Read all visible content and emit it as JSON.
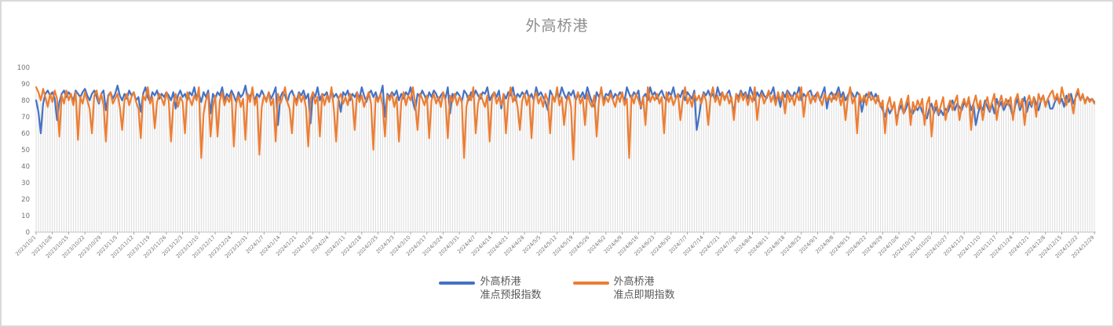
{
  "window": {
    "background": "#ffffff",
    "border_color": "#d9d9d9"
  },
  "title": {
    "text": "外高桥港",
    "color": "#8c8c8c"
  },
  "legend": {
    "items": [
      {
        "name_line1": "外高桥港",
        "name_line2": "准点预报指数",
        "color": "#4472C4"
      },
      {
        "name_line1": "外高桥港",
        "name_line2": "准点即期指数",
        "color": "#ED7D31"
      }
    ]
  },
  "colors": {
    "drop_line": "#dcdcdc",
    "axis_line": "#c0c0c0",
    "tick_mark": "#a6a6a6",
    "axis_label": "#737373"
  },
  "chart_data": {
    "type": "line",
    "title": "外高桥港",
    "xlabel": "",
    "ylabel": "",
    "ylim": [
      0,
      100
    ],
    "y_ticks": [
      0,
      10,
      20,
      30,
      40,
      50,
      60,
      70,
      80,
      90,
      100
    ],
    "grid": "vertical-drop-lines",
    "legend_position": "bottom",
    "x_start_date": "2023/10/1",
    "x_end_date": "2024/12/29",
    "point_interval": "daily",
    "x_tick_interval_days": 7,
    "x_tick_labels": [
      "2023/10/1",
      "2023/10/8",
      "2023/10/15",
      "2023/10/22",
      "2023/10/29",
      "2023/11/5",
      "2023/11/12",
      "2023/11/19",
      "2023/11/26",
      "2023/12/3",
      "2023/12/10",
      "2023/12/17",
      "2023/12/24",
      "2023/12/31",
      "2024/1/7",
      "2024/1/14",
      "2024/1/21",
      "2024/1/28",
      "2024/2/4",
      "2024/2/11",
      "2024/2/18",
      "2024/2/25",
      "2024/3/3",
      "2024/3/10",
      "2024/3/17",
      "2024/3/24",
      "2024/3/31",
      "2024/4/7",
      "2024/4/14",
      "2024/4/21",
      "2024/4/28",
      "2024/5/5",
      "2024/5/12",
      "2024/5/19",
      "2024/5/26",
      "2024/6/2",
      "2024/6/9",
      "2024/6/16",
      "2024/6/23",
      "2024/6/30",
      "2024/7/7",
      "2024/7/14",
      "2024/7/21",
      "2024/7/28",
      "2024/8/4",
      "2024/8/11",
      "2024/8/18",
      "2024/8/25",
      "2024/9/1",
      "2024/9/8",
      "2024/9/15",
      "2024/9/22",
      "2024/9/29",
      "2024/10/6",
      "2024/10/13",
      "2024/10/20",
      "2024/10/27",
      "2024/11/3",
      "2024/11/10",
      "2024/11/17",
      "2024/11/24",
      "2024/12/1",
      "2024/12/8",
      "2024/12/15",
      "2024/12/22",
      "2024/12/29"
    ],
    "series": [
      {
        "name": "外高桥港 准点预报指数",
        "color": "#4472C4",
        "values": [
          80,
          73,
          60,
          78,
          84,
          86,
          83,
          85,
          81,
          68,
          79,
          84,
          86,
          82,
          85,
          83,
          80,
          86,
          84,
          82,
          85,
          87,
          83,
          80,
          84,
          86,
          82,
          78,
          84,
          86,
          74,
          83,
          85,
          81,
          84,
          89,
          83,
          80,
          84,
          81,
          86,
          83,
          85,
          80,
          82,
          73,
          84,
          88,
          82,
          79,
          85,
          83,
          86,
          81,
          84,
          82,
          85,
          83,
          80,
          85,
          75,
          83,
          86,
          82,
          84,
          80,
          85,
          83,
          88,
          81,
          84,
          79,
          85,
          82,
          86,
          72,
          84,
          81,
          85,
          83,
          88,
          80,
          84,
          82,
          86,
          83,
          79,
          85,
          82,
          84,
          89,
          81,
          83,
          85,
          80,
          84,
          82,
          86,
          83,
          80,
          85,
          81,
          84,
          88,
          65,
          82,
          85,
          83,
          79,
          84,
          86,
          82,
          80,
          85,
          83,
          86,
          81,
          84,
          66,
          85,
          82,
          88,
          80,
          84,
          83,
          85,
          79,
          86,
          82,
          84,
          81,
          73,
          85,
          83,
          86,
          80,
          84,
          82,
          85,
          81,
          88,
          83,
          79,
          84,
          86,
          82,
          85,
          80,
          83,
          89,
          70,
          84,
          82,
          85,
          83,
          86,
          80,
          84,
          81,
          85,
          83,
          88,
          79,
          74,
          84,
          82,
          86,
          83,
          80,
          85,
          82,
          86,
          84,
          80,
          83,
          85,
          81,
          88,
          72,
          84,
          82,
          85,
          83,
          79,
          86,
          84,
          80,
          85,
          82,
          86,
          83,
          81,
          85,
          84,
          88,
          80,
          83,
          85,
          82,
          86,
          75,
          84,
          81,
          85,
          83,
          88,
          80,
          84,
          82,
          85,
          83,
          86,
          81,
          84,
          80,
          88,
          83,
          85,
          82,
          79,
          74,
          86,
          83,
          80,
          85,
          82,
          88,
          84,
          81,
          85,
          83,
          86,
          80,
          84,
          82,
          85,
          81,
          88,
          83,
          79,
          76,
          85,
          82,
          86,
          80,
          84,
          83,
          86,
          81,
          84,
          82,
          85,
          83,
          80,
          88,
          84,
          81,
          85,
          83,
          86,
          75,
          82,
          84,
          80,
          88,
          83,
          85,
          81,
          84,
          86,
          82,
          80,
          85,
          83,
          88,
          81,
          84,
          82,
          86,
          80,
          85,
          83,
          81,
          86,
          62,
          70,
          80,
          85,
          83,
          86,
          82,
          84,
          80,
          88,
          83,
          85,
          81,
          84,
          86,
          80,
          72,
          84,
          82,
          86,
          83,
          85,
          81,
          88,
          84,
          80,
          85,
          82,
          86,
          83,
          81,
          85,
          84,
          88,
          80,
          83,
          76,
          85,
          82,
          86,
          84,
          81,
          85,
          83,
          88,
          80,
          84,
          82,
          85,
          86,
          81,
          83,
          85,
          80,
          84,
          88,
          75,
          83,
          85,
          81,
          84,
          88,
          82,
          85,
          80,
          83,
          86,
          84,
          81,
          85,
          83,
          73,
          80,
          84,
          82,
          85,
          81,
          84,
          80,
          78,
          74,
          70,
          76,
          72,
          75,
          78,
          68,
          74,
          77,
          72,
          75,
          79,
          73,
          72,
          76,
          74,
          77,
          73,
          70,
          69,
          75,
          78,
          72,
          76,
          71,
          74,
          71,
          75,
          73,
          77,
          80,
          74,
          78,
          76,
          74,
          79,
          76,
          81,
          74,
          78,
          65,
          72,
          77,
          74,
          80,
          76,
          73,
          78,
          72,
          81,
          76,
          79,
          74,
          77,
          80,
          75,
          70,
          77,
          81,
          74,
          78,
          82,
          73,
          79,
          76,
          82,
          78,
          74,
          80,
          83,
          77,
          81,
          75,
          75,
          79,
          82,
          78,
          81,
          76,
          83,
          79,
          84,
          78,
          82,
          85,
          80,
          83,
          79,
          82,
          80,
          81,
          79
        ]
      },
      {
        "name": "外高桥港 准点即期指数",
        "color": "#ED7D31",
        "values": [
          88,
          85,
          80,
          87,
          82,
          76,
          84,
          79,
          86,
          81,
          58,
          83,
          78,
          86,
          80,
          84,
          77,
          85,
          56,
          82,
          78,
          85,
          80,
          75,
          60,
          83,
          86,
          79,
          84,
          77,
          55,
          82,
          85,
          78,
          81,
          84,
          76,
          62,
          80,
          84,
          77,
          82,
          85,
          79,
          75,
          57,
          83,
          80,
          88,
          78,
          82,
          63,
          79,
          84,
          81,
          77,
          85,
          80,
          55,
          78,
          84,
          76,
          82,
          79,
          60,
          85,
          81,
          77,
          83,
          80,
          88,
          45,
          72,
          80,
          84,
          58,
          76,
          83,
          58,
          80,
          85,
          77,
          82,
          79,
          84,
          52,
          78,
          83,
          76,
          81,
          56,
          84,
          79,
          88,
          77,
          82,
          47,
          76,
          83,
          79,
          85,
          77,
          81,
          55,
          84,
          78,
          82,
          88,
          79,
          75,
          60,
          83,
          77,
          84,
          79,
          83,
          76,
          52,
          81,
          85,
          78,
          82,
          58,
          84,
          77,
          83,
          79,
          88,
          75,
          55,
          81,
          84,
          78,
          82,
          77,
          84,
          80,
          62,
          85,
          79,
          83,
          76,
          81,
          85,
          78,
          50,
          82,
          79,
          84,
          77,
          58,
          83,
          80,
          84,
          76,
          82,
          55,
          79,
          85,
          77,
          83,
          80,
          88,
          78,
          62,
          84,
          81,
          77,
          83,
          57,
          80,
          84,
          78,
          82,
          76,
          85,
          80,
          57,
          83,
          79,
          84,
          77,
          82,
          80,
          45,
          76,
          83,
          80,
          88,
          60,
          78,
          84,
          80,
          76,
          83,
          55,
          81,
          85,
          78,
          82,
          77,
          84,
          60,
          80,
          88,
          79,
          83,
          76,
          62,
          80,
          84,
          77,
          83,
          57,
          81,
          85,
          78,
          82,
          76,
          84,
          80,
          60,
          83,
          79,
          88,
          77,
          82,
          65,
          79,
          83,
          76,
          44,
          81,
          85,
          78,
          82,
          65,
          84,
          79,
          76,
          83,
          58,
          80,
          88,
          77,
          82,
          79,
          84,
          80,
          76,
          83,
          79,
          85,
          77,
          81,
          45,
          83,
          78,
          84,
          80,
          76,
          82,
          65,
          88,
          79,
          83,
          80,
          84,
          78,
          82,
          60,
          85,
          79,
          83,
          77,
          81,
          84,
          68,
          80,
          88,
          78,
          82,
          76,
          84,
          80,
          83,
          78,
          84,
          80,
          65,
          82,
          88,
          79,
          83,
          77,
          85,
          80,
          84,
          78,
          82,
          68,
          84,
          79,
          85,
          80,
          84,
          77,
          83,
          79,
          88,
          68,
          81,
          84,
          78,
          82,
          86,
          79,
          83,
          77,
          85,
          80,
          84,
          72,
          85,
          79,
          83,
          77,
          84,
          80,
          88,
          70,
          82,
          85,
          78,
          83,
          79,
          85,
          81,
          77,
          84,
          80,
          83,
          79,
          84,
          80,
          85,
          77,
          83,
          68,
          81,
          88,
          78,
          82,
          60,
          84,
          79,
          83,
          77,
          85,
          80,
          82,
          78,
          83,
          76,
          80,
          60,
          77,
          82,
          74,
          79,
          65,
          76,
          81,
          72,
          78,
          83,
          65,
          79,
          74,
          80,
          76,
          81,
          65,
          78,
          82,
          58,
          75,
          80,
          72,
          77,
          82,
          68,
          76,
          80,
          74,
          79,
          83,
          68,
          77,
          81,
          76,
          82,
          62,
          78,
          83,
          75,
          80,
          68,
          77,
          82,
          74,
          79,
          84,
          68,
          78,
          83,
          76,
          81,
          77,
          82,
          68,
          80,
          84,
          76,
          81,
          65,
          79,
          83,
          77,
          82,
          70,
          84,
          79,
          83,
          76,
          81,
          84,
          86,
          80,
          84,
          78,
          88,
          82,
          77,
          84,
          80,
          72,
          83,
          87,
          80,
          84,
          78,
          82,
          79,
          81,
          78
        ]
      }
    ]
  }
}
